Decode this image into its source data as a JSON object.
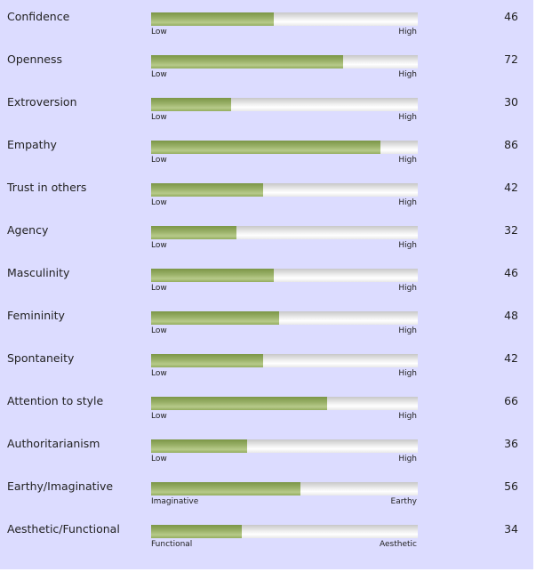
{
  "traits": [
    {
      "label": "Confidence",
      "value": 46,
      "low": "Low",
      "high": "High"
    },
    {
      "label": "Openness",
      "value": 72,
      "low": "Low",
      "high": "High"
    },
    {
      "label": "Extroversion",
      "value": 30,
      "low": "Low",
      "high": "High"
    },
    {
      "label": "Empathy",
      "value": 86,
      "low": "Low",
      "high": "High"
    },
    {
      "label": "Trust in others",
      "value": 42,
      "low": "Low",
      "high": "High"
    },
    {
      "label": "Agency",
      "value": 32,
      "low": "Low",
      "high": "High"
    },
    {
      "label": "Masculinity",
      "value": 46,
      "low": "Low",
      "high": "High"
    },
    {
      "label": "Femininity",
      "value": 48,
      "low": "Low",
      "high": "High"
    },
    {
      "label": "Spontaneity",
      "value": 42,
      "low": "Low",
      "high": "High"
    },
    {
      "label": "Attention to style",
      "value": 66,
      "low": "Low",
      "high": "High"
    },
    {
      "label": "Authoritarianism",
      "value": 36,
      "low": "Low",
      "high": "High"
    },
    {
      "label": "Earthy/Imaginative",
      "value": 56,
      "low": "Imaginative",
      "high": "Earthy"
    },
    {
      "label": "Aesthetic/Functional",
      "value": 34,
      "low": "Functional",
      "high": "Aesthetic"
    }
  ],
  "colors": {
    "background": "#dcdcff",
    "fill": "#9bb26a",
    "track": "#ededed"
  }
}
